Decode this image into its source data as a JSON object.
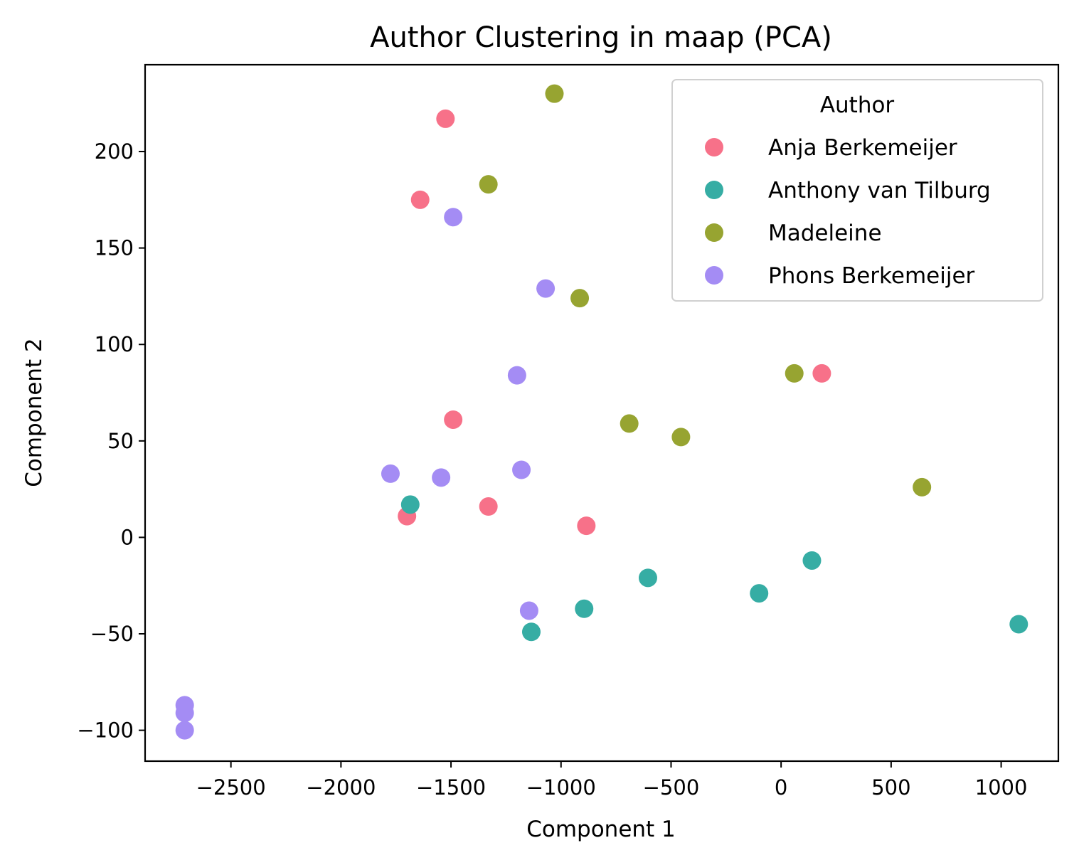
{
  "chart_data": {
    "type": "scatter",
    "title": "Author Clustering in maap (PCA)",
    "xlabel": "Component 1",
    "ylabel": "Component 2",
    "xlim": [
      -2890,
      1260
    ],
    "ylim": [
      -116,
      245
    ],
    "xticks": [
      -2500,
      -2000,
      -1500,
      -1000,
      -500,
      0,
      500,
      1000
    ],
    "xtick_labels": [
      "−2500",
      "−2000",
      "−1500",
      "−1000",
      "−500",
      "0",
      "500",
      "1000"
    ],
    "yticks": [
      -100,
      -50,
      0,
      50,
      100,
      150,
      200
    ],
    "ytick_labels": [
      "−100",
      "−50",
      "0",
      "50",
      "100",
      "150",
      "200"
    ],
    "grid": false,
    "legend": {
      "title": "Author",
      "position": "top-right"
    },
    "series": [
      {
        "name": "Anja Berkemeijer",
        "color": "#f77189",
        "points": [
          {
            "x": -1525,
            "y": 217
          },
          {
            "x": -1640,
            "y": 175
          },
          {
            "x": -1490,
            "y": 61
          },
          {
            "x": -1330,
            "y": 16
          },
          {
            "x": -1700,
            "y": 11
          },
          {
            "x": -885,
            "y": 6
          },
          {
            "x": 185,
            "y": 85
          }
        ]
      },
      {
        "name": "Anthony van Tilburg",
        "color": "#36ada4",
        "points": [
          {
            "x": -1685,
            "y": 17
          },
          {
            "x": -605,
            "y": -21
          },
          {
            "x": -895,
            "y": -37
          },
          {
            "x": -1135,
            "y": -49
          },
          {
            "x": -100,
            "y": -29
          },
          {
            "x": 140,
            "y": -12
          },
          {
            "x": 1080,
            "y": -45
          }
        ]
      },
      {
        "name": "Madeleine",
        "color": "#97a431",
        "points": [
          {
            "x": -1030,
            "y": 230
          },
          {
            "x": -1330,
            "y": 183
          },
          {
            "x": -915,
            "y": 124
          },
          {
            "x": 60,
            "y": 85
          },
          {
            "x": -690,
            "y": 59
          },
          {
            "x": -455,
            "y": 52
          },
          {
            "x": 640,
            "y": 26
          }
        ]
      },
      {
        "name": "Phons Berkemeijer",
        "color": "#a48cf4",
        "points": [
          {
            "x": -1490,
            "y": 166
          },
          {
            "x": -1070,
            "y": 129
          },
          {
            "x": -1200,
            "y": 84
          },
          {
            "x": -1775,
            "y": 33
          },
          {
            "x": -1545,
            "y": 31
          },
          {
            "x": -1180,
            "y": 35
          },
          {
            "x": -1145,
            "y": -38
          },
          {
            "x": -2710,
            "y": -87
          },
          {
            "x": -2710,
            "y": -91
          },
          {
            "x": -2710,
            "y": -100
          }
        ]
      }
    ]
  }
}
